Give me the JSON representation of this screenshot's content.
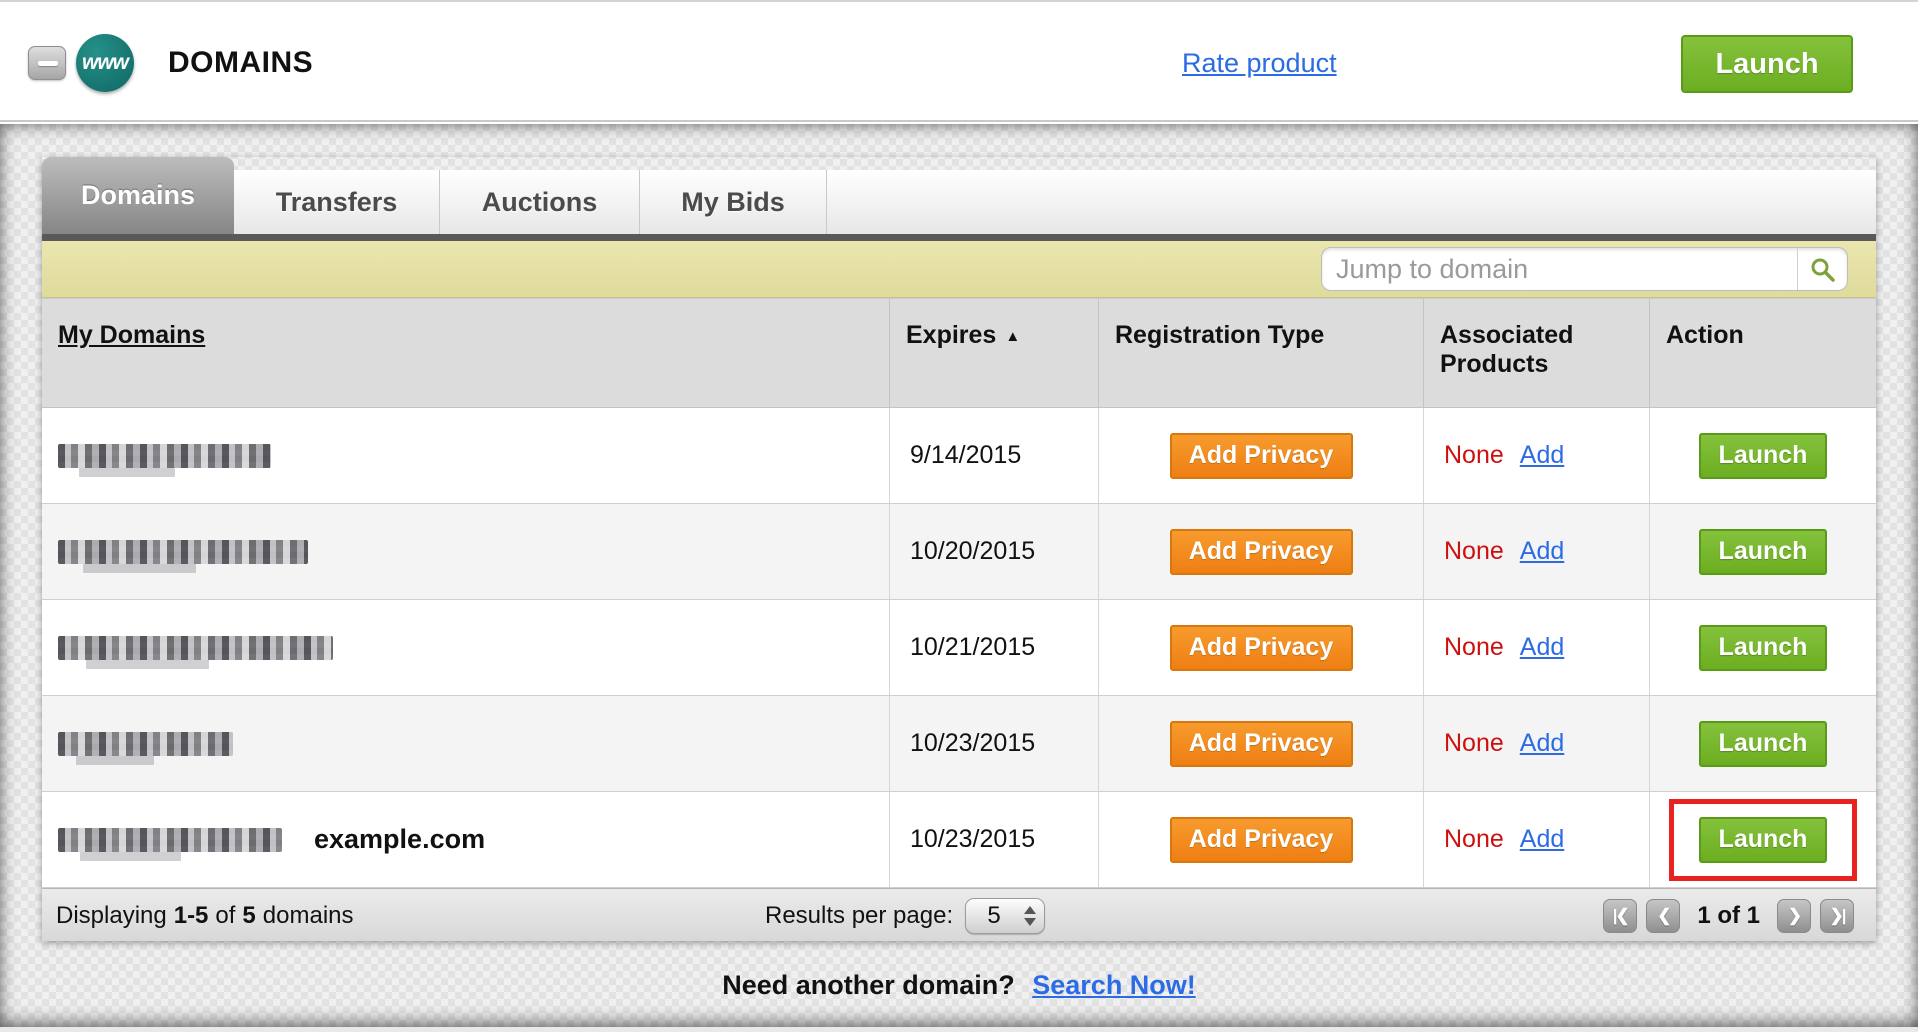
{
  "header": {
    "collapse_icon": "minus",
    "logo_text": "www",
    "title": "DOMAINS",
    "rate_product_link": "Rate product",
    "launch_button": "Launch"
  },
  "tabs": [
    {
      "label": "Domains",
      "active": true
    },
    {
      "label": "Transfers",
      "active": false
    },
    {
      "label": "Auctions",
      "active": false
    },
    {
      "label": "My Bids",
      "active": false
    }
  ],
  "toolbar": {
    "jump_placeholder": "Jump to domain",
    "search_icon": "magnifier"
  },
  "table": {
    "columns": [
      {
        "label": "My Domains",
        "sortable": true
      },
      {
        "label": "Expires",
        "sortable": true,
        "sort_indicator": "▲",
        "sorted": "asc"
      },
      {
        "label": "Registration Type"
      },
      {
        "label": "Associated Products"
      },
      {
        "label": "Action"
      }
    ],
    "rows": [
      {
        "domain_masked": true,
        "mask_width": 213,
        "annotation": "",
        "expires": "9/14/2015",
        "registration_action": "Add Privacy",
        "associated_products": "None",
        "associated_add_link": "Add",
        "action": "Launch",
        "action_highlighted": false
      },
      {
        "domain_masked": true,
        "mask_width": 250,
        "annotation": "",
        "expires": "10/20/2015",
        "registration_action": "Add Privacy",
        "associated_products": "None",
        "associated_add_link": "Add",
        "action": "Launch",
        "action_highlighted": false
      },
      {
        "domain_masked": true,
        "mask_width": 275,
        "annotation": "",
        "expires": "10/21/2015",
        "registration_action": "Add Privacy",
        "associated_products": "None",
        "associated_add_link": "Add",
        "action": "Launch",
        "action_highlighted": false
      },
      {
        "domain_masked": true,
        "mask_width": 175,
        "annotation": "",
        "expires": "10/23/2015",
        "registration_action": "Add Privacy",
        "associated_products": "None",
        "associated_add_link": "Add",
        "action": "Launch",
        "action_highlighted": false
      },
      {
        "domain_masked": true,
        "mask_width": 224,
        "annotation": "example.com",
        "expires": "10/23/2015",
        "registration_action": "Add Privacy",
        "associated_products": "None",
        "associated_add_link": "Add",
        "action": "Launch",
        "action_highlighted": true
      }
    ]
  },
  "footer": {
    "displaying_prefix": "Displaying",
    "range": "1-5",
    "of_word": "of",
    "total": "5",
    "suffix": "domains",
    "results_per_page_label": "Results per page:",
    "results_per_page_value": "5",
    "pagination": {
      "first_icon": "|❮",
      "prev_icon": "❮",
      "status": "1 of 1",
      "next_icon": "❯",
      "last_icon": "❯|"
    }
  },
  "bottom": {
    "prompt": "Need another domain?",
    "link": "Search Now!"
  },
  "colors": {
    "accent_green": "#76b82a",
    "accent_green_border": "#5b9a19",
    "accent_orange": "#f1861d",
    "accent_orange_border": "#d8770e",
    "highlight_red": "#e8221f",
    "link_blue": "#2b6ce6",
    "none_red": "#cc1111",
    "yellow_bar": "#e5e1a5",
    "logo_teal": "#1b7e79",
    "active_tab_gray": "#8c8c8c"
  }
}
